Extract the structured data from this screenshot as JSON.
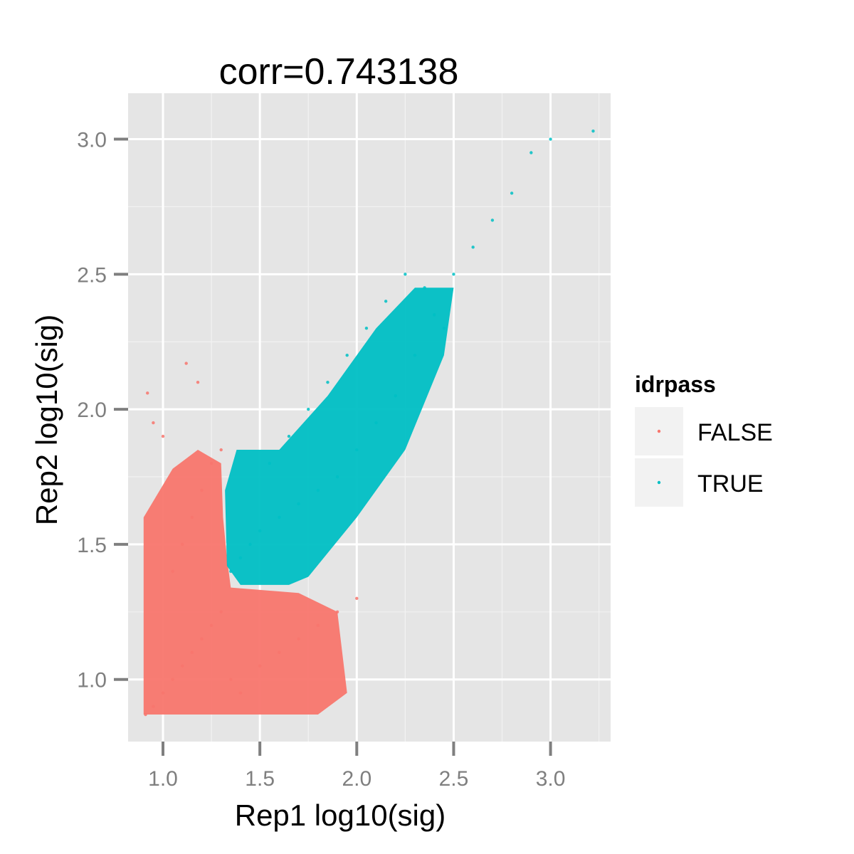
{
  "chart_data": {
    "type": "scatter",
    "title": "corr=0.743138",
    "xlabel": "Rep1 log10(sig)",
    "ylabel": "Rep2 log10(sig)",
    "xlim": [
      0.82,
      3.31
    ],
    "ylim": [
      0.77,
      3.17
    ],
    "x_ticks": [
      "1.0",
      "1.5",
      "2.0",
      "2.5",
      "3.0"
    ],
    "y_ticks": [
      "1.0",
      "1.5",
      "2.0",
      "2.5",
      "3.0"
    ],
    "grid": true,
    "legend": {
      "title": "idrpass",
      "position": "right",
      "entries": [
        "FALSE",
        "TRUE"
      ]
    },
    "colors": {
      "FALSE": "#F8766D",
      "TRUE": "#00BFC4",
      "panel": "#E5E5E5",
      "grid": "#FFFFFF"
    },
    "series": [
      {
        "name": "FALSE",
        "x": [
          0.91,
          0.95,
          1.0,
          1.05,
          1.1,
          1.15,
          1.2,
          1.25,
          1.3,
          1.35,
          1.4,
          1.5,
          1.6,
          1.7,
          1.8,
          1.9,
          2.0,
          1.05,
          1.1,
          1.15,
          1.2,
          1.25,
          1.3,
          0.95,
          1.0,
          0.92,
          1.12,
          1.18
        ],
        "y": [
          0.87,
          0.9,
          0.95,
          1.0,
          1.05,
          1.1,
          1.15,
          1.2,
          1.25,
          1.0,
          0.95,
          1.05,
          1.1,
          1.15,
          1.2,
          1.25,
          1.3,
          1.4,
          1.5,
          1.6,
          1.7,
          1.8,
          1.85,
          1.95,
          1.9,
          2.06,
          2.17,
          2.1
        ]
      },
      {
        "name": "TRUE",
        "x": [
          1.35,
          1.4,
          1.45,
          1.5,
          1.6,
          1.7,
          1.8,
          1.9,
          2.0,
          2.1,
          2.2,
          2.3,
          2.4,
          2.5,
          2.6,
          2.7,
          2.8,
          2.9,
          3.0,
          3.22,
          1.55,
          1.65,
          1.75,
          1.85,
          1.95,
          2.05,
          2.15,
          2.25,
          2.35,
          2.45
        ],
        "y": [
          1.4,
          1.45,
          1.5,
          1.55,
          1.6,
          1.65,
          1.7,
          1.75,
          1.85,
          1.95,
          2.05,
          2.2,
          2.35,
          2.5,
          2.6,
          2.7,
          2.8,
          2.95,
          3.0,
          3.03,
          1.8,
          1.9,
          2.0,
          2.1,
          2.2,
          2.3,
          2.4,
          2.5,
          2.45,
          2.3
        ]
      }
    ]
  }
}
